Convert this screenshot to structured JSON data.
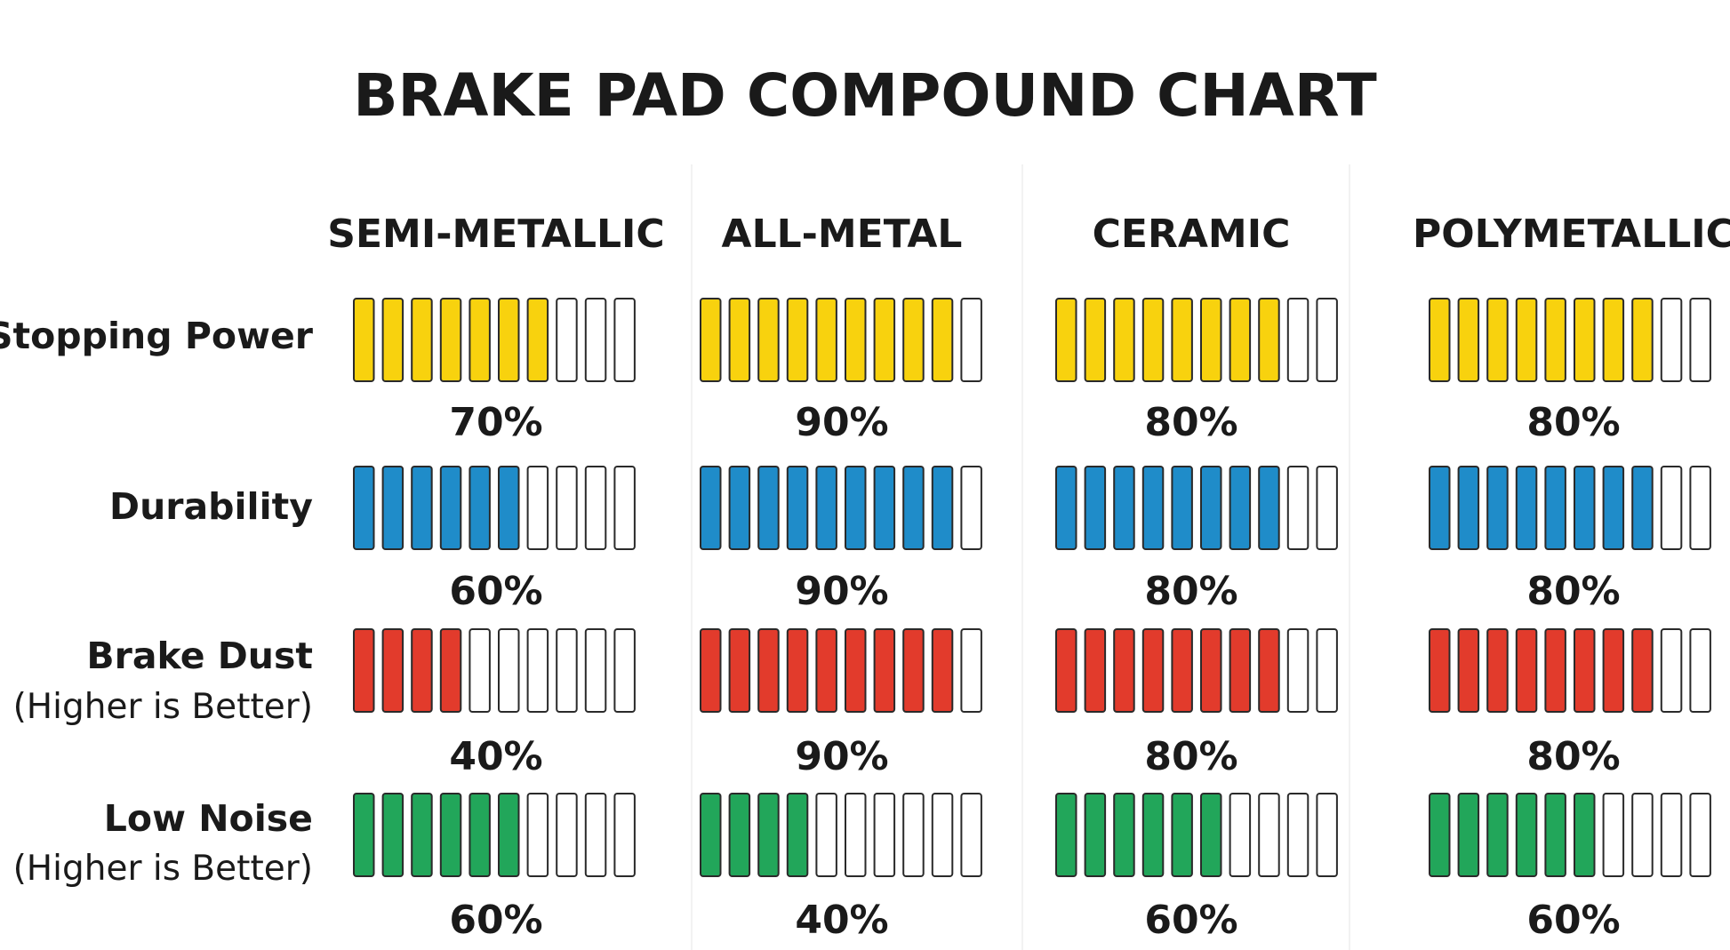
{
  "chart_data": {
    "type": "table",
    "title": "BRAKE PAD COMPOUND CHART",
    "columns": [
      "SEMI-METALLIC",
      "ALL-METAL",
      "CERAMIC",
      "POLYMETALLIC"
    ],
    "rows": [
      {
        "label": "Stopping Power",
        "sublabel": "",
        "color": "#F8D20E",
        "values": [
          70,
          90,
          80,
          80
        ],
        "value_labels": [
          "70%",
          "90%",
          "80%",
          "80%"
        ]
      },
      {
        "label": "Durability",
        "sublabel": "",
        "color": "#1F8CC9",
        "values": [
          60,
          90,
          80,
          80
        ],
        "value_labels": [
          "60%",
          "90%",
          "80%",
          "80%"
        ]
      },
      {
        "label": "Brake Dust",
        "sublabel": "(Higher is Better)",
        "color": "#E23B2C",
        "values": [
          40,
          90,
          80,
          80
        ],
        "value_labels": [
          "40%",
          "90%",
          "80%",
          "80%"
        ]
      },
      {
        "label": "Low Noise",
        "sublabel": "(Higher is Better)",
        "color": "#22A65A",
        "values": [
          60,
          40,
          60,
          60
        ],
        "value_labels": [
          "60%",
          "40%",
          "60%",
          "60%"
        ]
      }
    ],
    "segments_per_bar": 10,
    "empty_segment_color": "#FFFFFF",
    "segment_outline_color": "#2a2a2a",
    "grid": false,
    "legend": "none"
  }
}
